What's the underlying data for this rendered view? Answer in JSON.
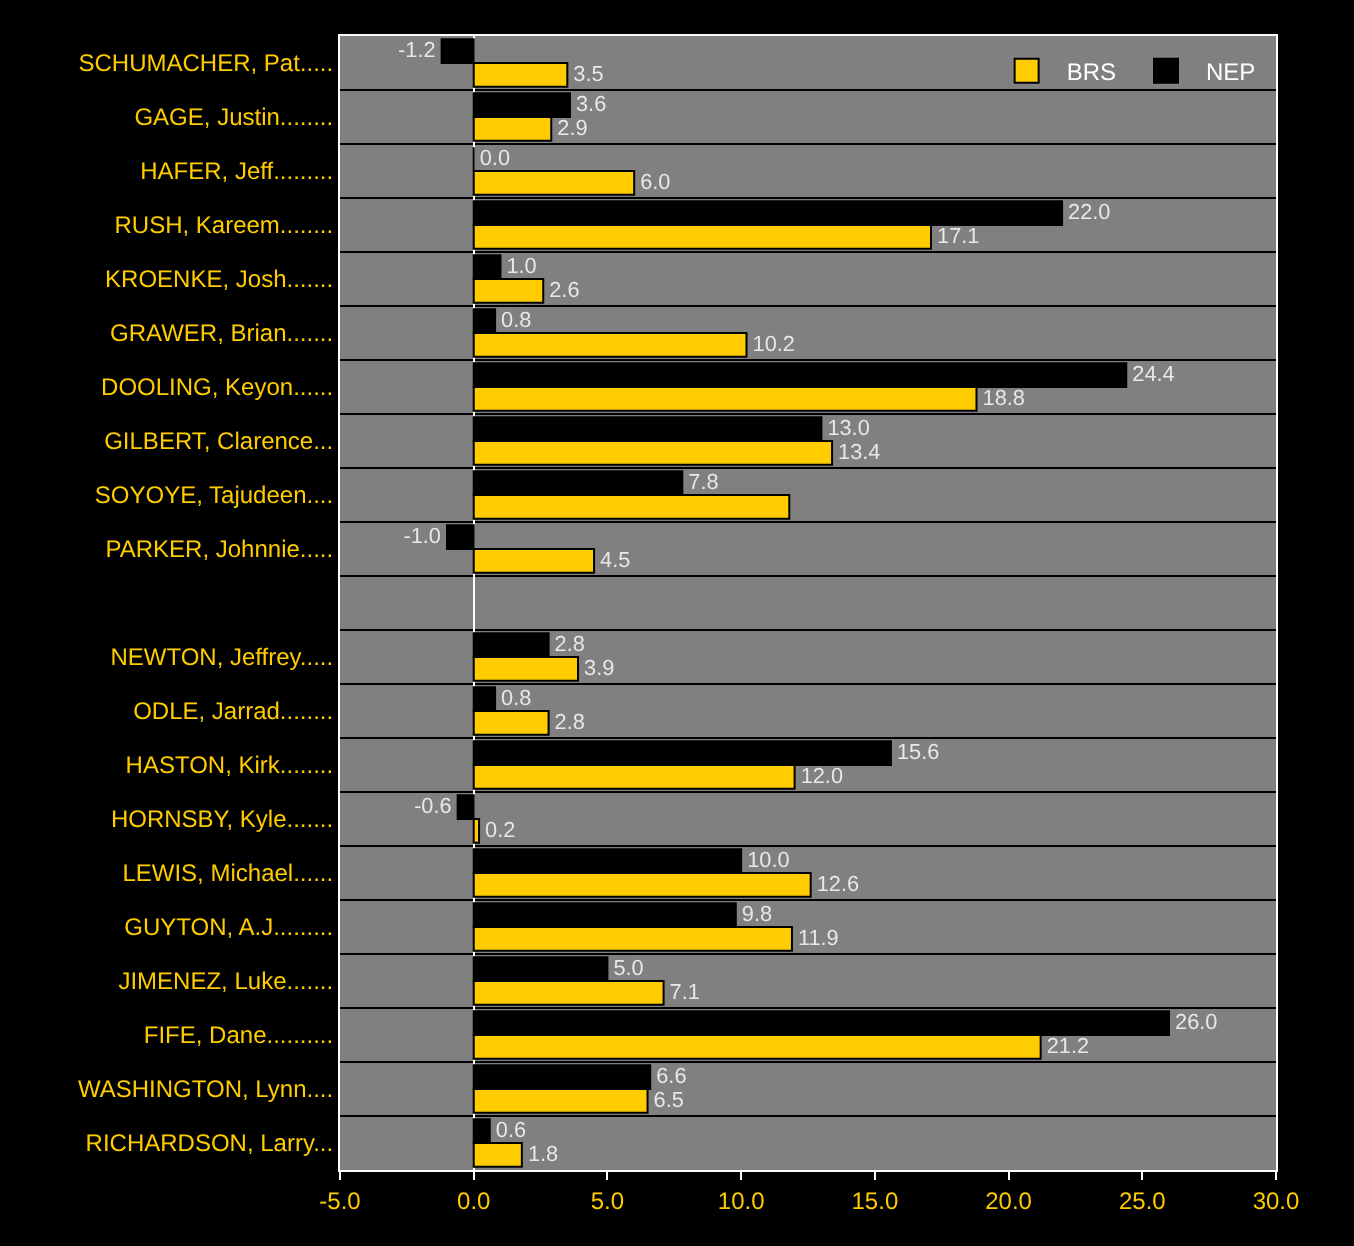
{
  "chart_data": {
    "type": "bar",
    "orientation": "horizontal",
    "categories": [
      "SCHUMACHER, Pat.....",
      "GAGE, Justin........",
      "HAFER, Jeff.........",
      "RUSH, Kareem........",
      "KROENKE, Josh.......",
      "GRAWER, Brian.......",
      "DOOLING, Keyon......",
      "GILBERT, Clarence...",
      "SOYOYE, Tajudeen....",
      "PARKER, Johnnie.....",
      null,
      "NEWTON, Jeffrey.....",
      "ODLE, Jarrad........",
      "HASTON, Kirk........",
      "HORNSBY, Kyle.......",
      "LEWIS, Michael......",
      "GUYTON, A.J.........",
      "JIMENEZ, Luke.......",
      "FIFE, Dane..........",
      "WASHINGTON, Lynn....",
      "RICHARDSON, Larry..."
    ],
    "series": [
      {
        "name": "NEP",
        "color": "#000000",
        "values": [
          -1.2,
          3.6,
          0.0,
          22.0,
          1.0,
          0.8,
          24.4,
          13.0,
          7.8,
          -1.0,
          null,
          2.8,
          0.8,
          15.6,
          -0.6,
          10.0,
          9.8,
          5.0,
          26.0,
          6.6,
          0.6
        ],
        "value_labels": [
          "-1.2",
          "3.6",
          "0.0",
          "22.0",
          "1.0",
          "0.8",
          "24.4",
          "13.0",
          "7.8",
          "-1.0",
          null,
          "2.8",
          "0.8",
          "15.6",
          "-0.6",
          "10.0",
          "9.8",
          "5.0",
          "26.0",
          "6.6",
          "0.6"
        ]
      },
      {
        "name": "BRS",
        "color": "#ffcc00",
        "values": [
          3.5,
          2.9,
          6.0,
          17.1,
          2.6,
          10.2,
          18.8,
          13.4,
          11.8,
          4.5,
          null,
          3.9,
          2.8,
          12.0,
          0.2,
          12.6,
          11.9,
          7.1,
          21.2,
          6.5,
          1.8
        ],
        "value_labels": [
          "3.5",
          "2.9",
          "6.0",
          "17.1",
          "2.6",
          "10.2",
          "18.8",
          "13.4",
          null,
          "4.5",
          null,
          "3.9",
          "2.8",
          "12.0",
          "0.2",
          "12.6",
          "11.9",
          "7.1",
          "21.2",
          "6.5",
          "1.8"
        ]
      }
    ],
    "xlim": [
      -5,
      30
    ],
    "xticks": [
      {
        "value": -5,
        "label": "-5.0"
      },
      {
        "value": 0,
        "label": "0.0"
      },
      {
        "value": 5,
        "label": "5.0"
      },
      {
        "value": 10,
        "label": "10.0"
      },
      {
        "value": 15,
        "label": "15.0"
      },
      {
        "value": 20,
        "label": "20.0"
      },
      {
        "value": 25,
        "label": "25.0"
      },
      {
        "value": 30,
        "label": "30.0"
      }
    ],
    "grid": false,
    "legend": "top right"
  }
}
